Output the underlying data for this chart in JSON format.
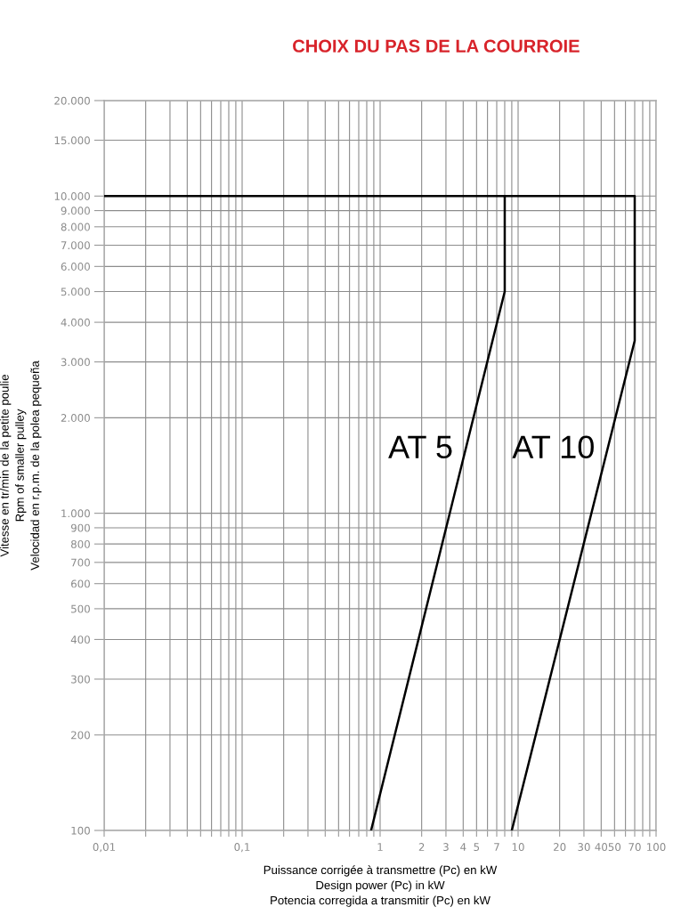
{
  "chart_data": {
    "type": "line",
    "title": "CHOIX DU PAS DE LA COURROIE",
    "xlabel": "Puissance corrigée à transmettre (Pc) en kW\nDesign power (Pc) in kW\nPotencia corregida a transmitir (Pc) en kW",
    "ylabel": "Vitesse en tr/min de la petite poulie\nRpm of smaller pulley\nVelocidad en r.p.m. de la polea pequeña",
    "log": "xy",
    "xlim": [
      0.01,
      100
    ],
    "ylim": [
      100,
      20000
    ],
    "xticks": [
      {
        "value": 0.01,
        "label": "0,01"
      },
      {
        "value": 0.02,
        "label": null
      },
      {
        "value": 0.03,
        "label": null
      },
      {
        "value": 0.04,
        "label": null
      },
      {
        "value": 0.05,
        "label": null
      },
      {
        "value": 0.06,
        "label": null
      },
      {
        "value": 0.07,
        "label": null
      },
      {
        "value": 0.08,
        "label": null
      },
      {
        "value": 0.09,
        "label": null
      },
      {
        "value": 0.1,
        "label": "0,1"
      },
      {
        "value": 0.2,
        "label": null
      },
      {
        "value": 0.3,
        "label": null
      },
      {
        "value": 0.4,
        "label": null
      },
      {
        "value": 0.5,
        "label": null
      },
      {
        "value": 0.6,
        "label": null
      },
      {
        "value": 0.7,
        "label": null
      },
      {
        "value": 0.8,
        "label": null
      },
      {
        "value": 0.9,
        "label": null
      },
      1,
      2,
      3,
      4,
      5,
      {
        "value": 6,
        "label": null
      },
      7,
      {
        "value": 8,
        "label": null
      },
      {
        "value": 9,
        "label": null
      },
      10,
      20,
      30,
      40,
      50,
      {
        "value": 60,
        "label": null
      },
      70,
      {
        "value": 80,
        "label": null
      },
      {
        "value": 90,
        "label": null
      },
      100
    ],
    "yticks": [
      100,
      200,
      300,
      400,
      500,
      600,
      700,
      800,
      900,
      {
        "value": 1000,
        "label": "1.000"
      },
      {
        "value": 2000,
        "label": "2.000"
      },
      {
        "value": 3000,
        "label": "3.000"
      },
      {
        "value": 4000,
        "label": "4.000"
      },
      {
        "value": 5000,
        "label": "5.000"
      },
      {
        "value": 6000,
        "label": "6.000"
      },
      {
        "value": 7000,
        "label": "7.000"
      },
      {
        "value": 8000,
        "label": "8.000"
      },
      {
        "value": 9000,
        "label": "9.000"
      },
      {
        "value": 10000,
        "label": "10.000"
      },
      {
        "value": 15000,
        "label": "15.000"
      },
      {
        "value": 20000,
        "label": "20.000"
      }
    ],
    "grid": true,
    "series": [
      {
        "name": "AT 5",
        "color": "#000000",
        "x": [
          0.86,
          8,
          8,
          0.01
        ],
        "values": [
          100,
          5000,
          10000,
          10000
        ]
      },
      {
        "name": "AT 10",
        "color": "#000000",
        "x": [
          9,
          70,
          70,
          8
        ],
        "values": [
          100,
          3500,
          10000,
          10000
        ]
      }
    ]
  }
}
